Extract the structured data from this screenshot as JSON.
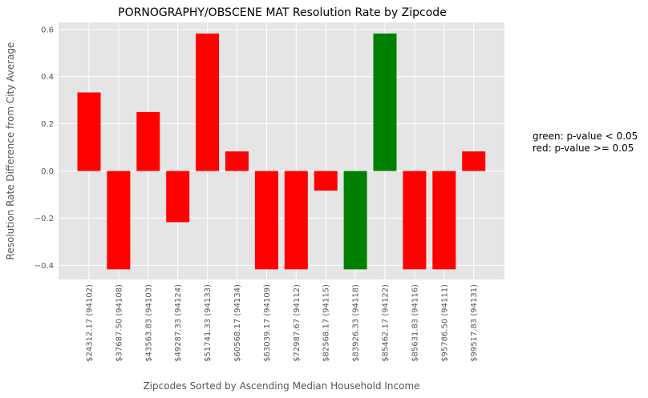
{
  "chart_data": {
    "type": "bar",
    "title": "PORNOGRAPHY/OBSCENE MAT Resolution Rate by Zipcode",
    "xlabel": "Zipcodes Sorted by Ascending Median Household Income",
    "ylabel": "Resolution Rate Difference from City Average",
    "ylim": [
      -0.46,
      0.63
    ],
    "yticks": [
      "0.6",
      "0.4",
      "0.2",
      "0.0",
      "−0.2",
      "−0.4"
    ],
    "ytick_values": [
      0.6,
      0.4,
      0.2,
      0.0,
      -0.2,
      -0.4
    ],
    "grid": true,
    "categories": [
      "$24312.17  (94102)",
      "$37687.50  (94108)",
      "$43563.83  (94103)",
      "$49287.33  (94124)",
      "$51741.33  (94133)",
      "$60568.17  (94134)",
      "$63039.17  (94109)",
      "$72987.67  (94112)",
      "$82568.17  (94115)",
      "$83926.33  (94118)",
      "$85462.17  (94122)",
      "$85631.83  (94116)",
      "$95786.50  (94111)",
      "$99517.83  (94131)"
    ],
    "values": [
      0.333,
      -0.417,
      0.25,
      -0.217,
      0.583,
      0.083,
      -0.417,
      -0.417,
      -0.083,
      -0.417,
      0.583,
      -0.417,
      -0.417,
      0.083
    ],
    "bar_colors": [
      "red",
      "red",
      "red",
      "red",
      "red",
      "red",
      "red",
      "red",
      "red",
      "green",
      "green",
      "red",
      "red",
      "red"
    ],
    "colors": {
      "red": "#ff0000",
      "green": "#008000",
      "background": "#e5e5e5",
      "grid": "#ffffff"
    },
    "legend_text": {
      "line1": "green: p-value < 0.05",
      "line2": "red: p-value >= 0.05"
    },
    "legend_placement": "right"
  }
}
